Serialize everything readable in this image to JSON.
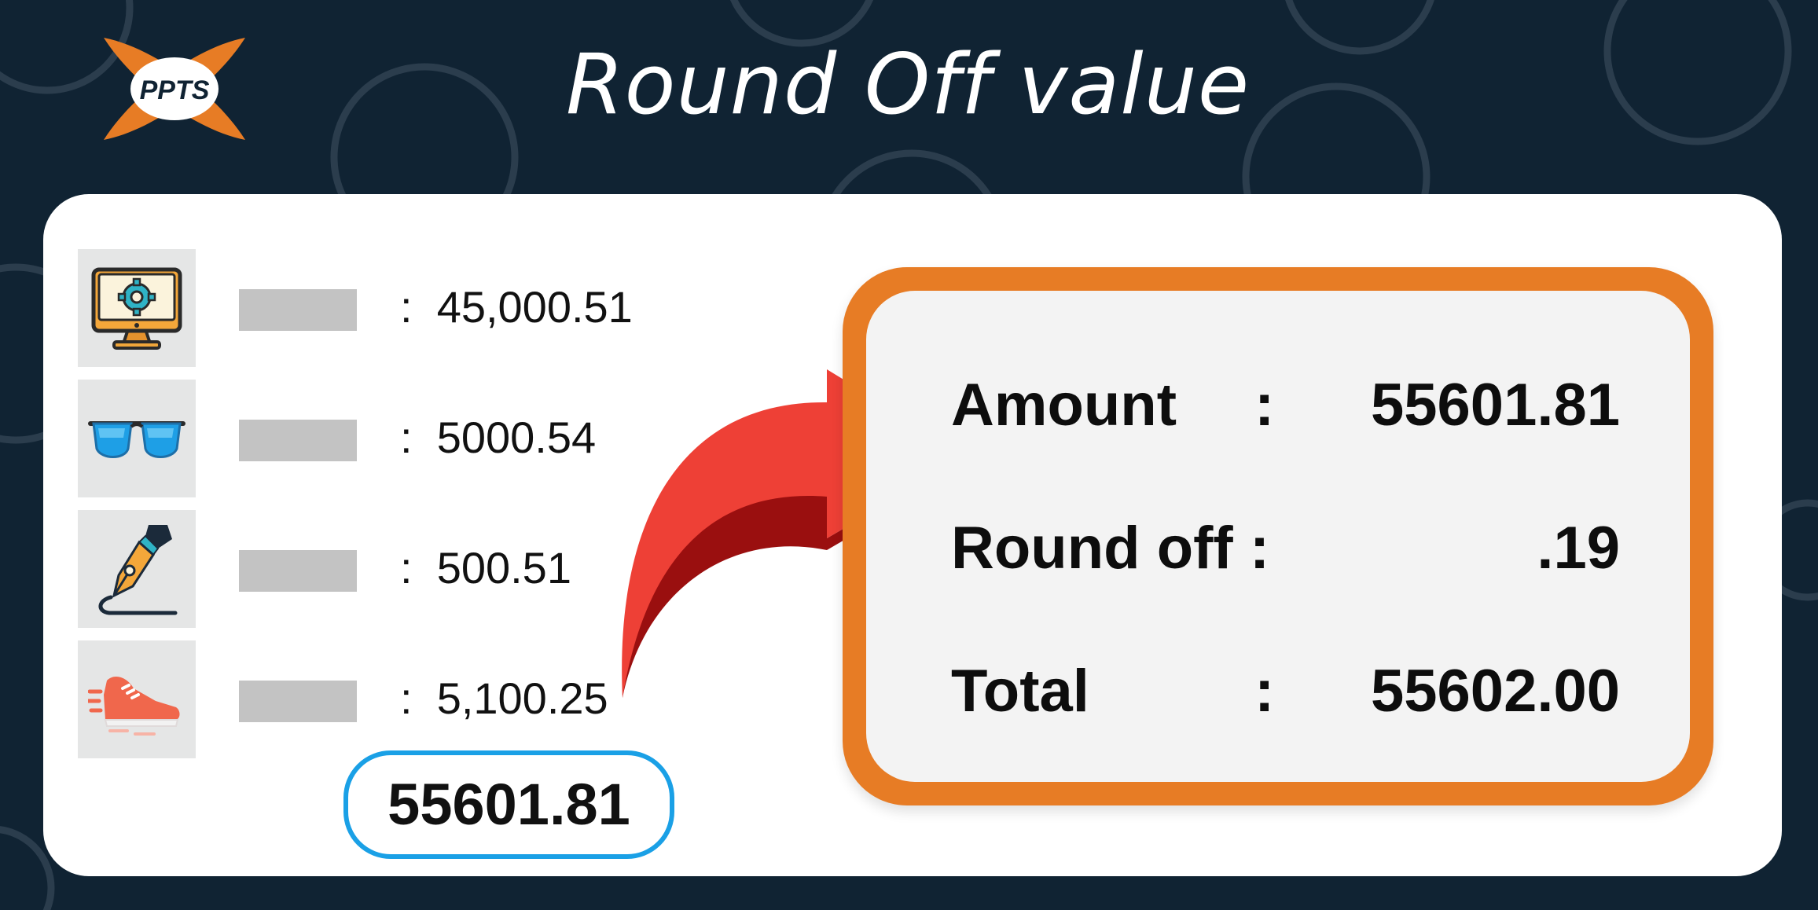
{
  "title": "Round Off value",
  "logo": {
    "text": "PPTS"
  },
  "items": [
    {
      "icon": "computer-settings-icon",
      "value": "45,000.51"
    },
    {
      "icon": "sunglasses-icon",
      "value": "5000.54"
    },
    {
      "icon": "fountain-pen-icon",
      "value": "500.51"
    },
    {
      "icon": "sneaker-icon",
      "value": "5,100.25"
    }
  ],
  "item_separator": ":",
  "subtotal": "55601.81",
  "summary": {
    "amount_label": "Amount",
    "amount_colon": ":",
    "amount_value": "55601.81",
    "roundoff_label": "Round off :",
    "roundoff_value": ".19",
    "total_label": "Total",
    "total_colon": ":",
    "total_value": "55602.00"
  },
  "colors": {
    "background": "#102333",
    "accent_orange": "#e77c25",
    "arrow_red": "#ee4036",
    "arrow_dark_red": "#9a0f0f",
    "subtotal_border_blue": "#1aa0e6",
    "label_placeholder_gray": "#c3c3c3"
  }
}
